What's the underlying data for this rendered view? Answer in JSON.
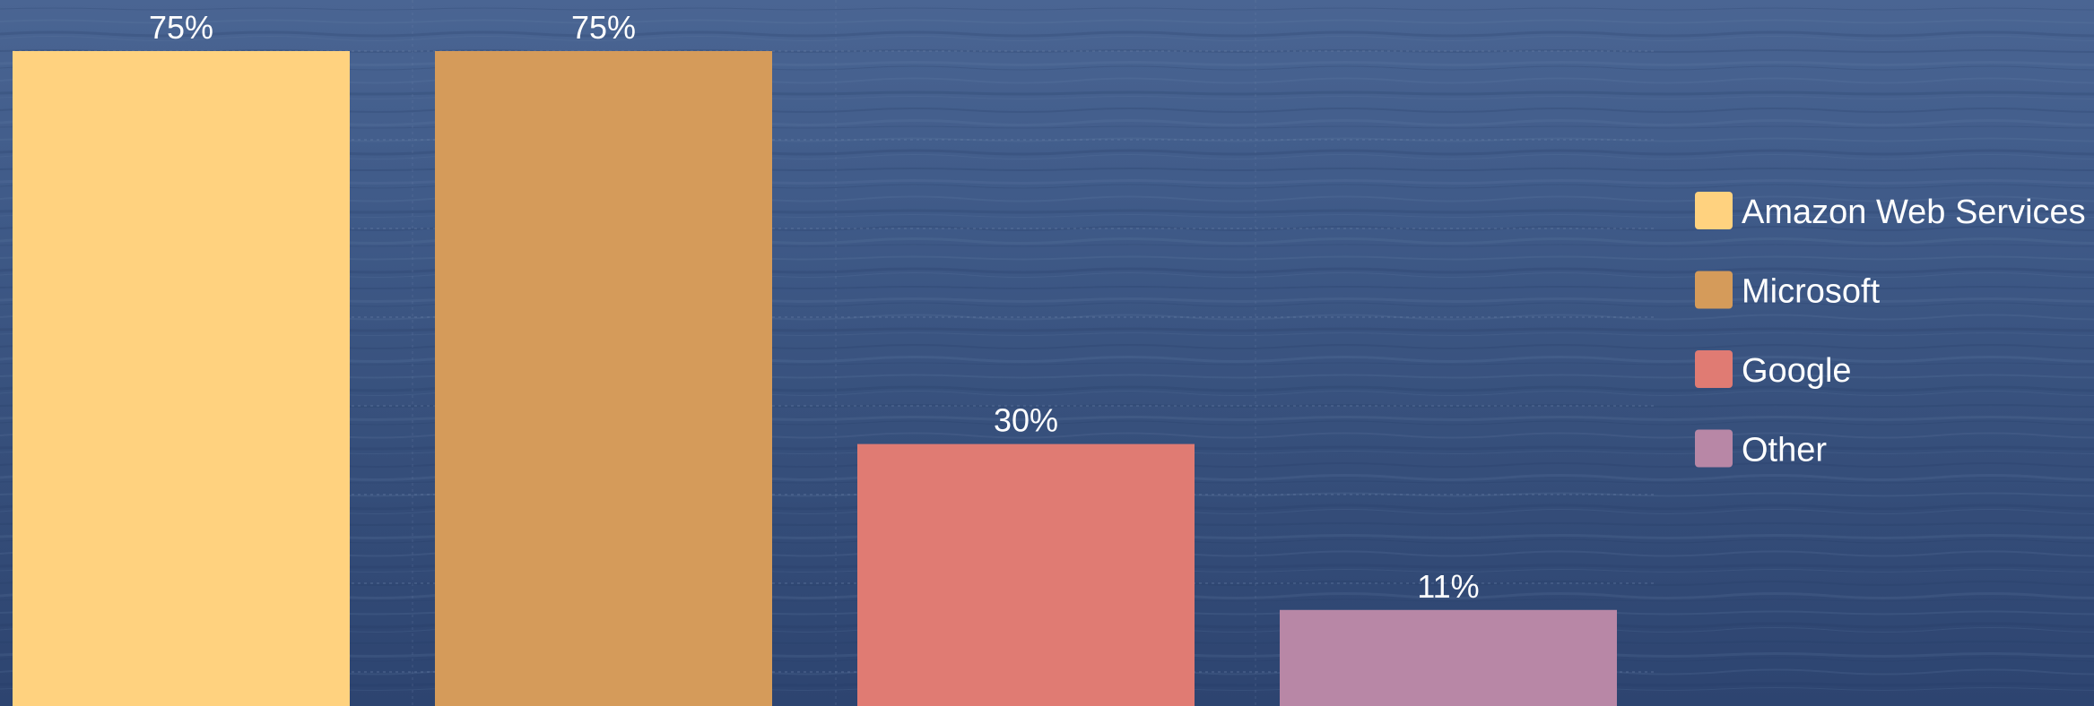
{
  "chart_data": {
    "type": "bar",
    "categories": [
      "Amazon Web Services",
      "Microsoft",
      "Google",
      "Other"
    ],
    "values": [
      75,
      75,
      30,
      11
    ],
    "value_labels": [
      "75%",
      "75%",
      "30%",
      "11%"
    ],
    "colors": [
      "#ffd27f",
      "#d59b5a",
      "#e07b73",
      "#b887a6"
    ],
    "legend": {
      "placement": "right",
      "entries": [
        "Amazon Web Services",
        "Microsoft",
        "Google",
        "Other"
      ]
    },
    "title": "",
    "xlabel": "",
    "ylabel": "",
    "ylim": [
      0,
      75
    ],
    "grid": true,
    "gridline_color": "#6f86ad"
  }
}
